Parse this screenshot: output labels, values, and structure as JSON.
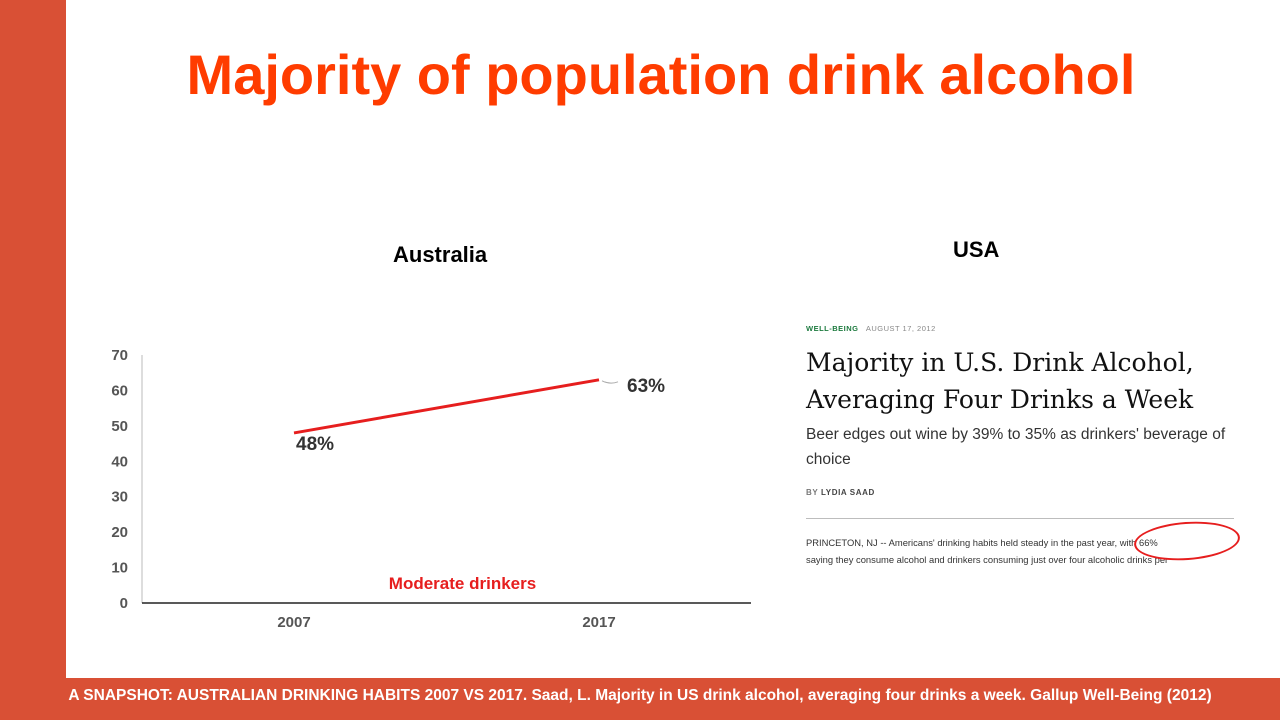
{
  "slide": {
    "title": "Majority of population drink alcohol",
    "footer": "A SNAPSHOT: AUSTRALIAN DRINKING HABITS 2007 VS 2017. Saad, L. Majority in US drink alcohol, averaging four drinks a week. Gallup Well-Being (2012)",
    "accent_color": "#d95035",
    "title_color": "#ff3c00"
  },
  "australia": {
    "label": "Australia"
  },
  "usa": {
    "label": "USA",
    "article": {
      "category": "WELL-BEING",
      "date": "AUGUST 17, 2012",
      "headline_line1": "Majority in U.S. Drink Alcohol,",
      "headline_line2": "Averaging Four Drinks a Week",
      "subhead": "Beer edges out wine by 39% to 35% as drinkers' beverage of choice",
      "byline_prefix": "BY",
      "byline_name": "LYDIA SAAD",
      "body_line1": "PRINCETON, NJ -- Americans' drinking habits held steady in the past year, with 66%",
      "body_line2": "saying they consume alcohol and drinkers consuming just over four alcoholic drinks per"
    }
  },
  "chart_data": {
    "type": "line",
    "x": [
      "2007",
      "2017"
    ],
    "series": [
      {
        "name": "Moderate drinkers",
        "values": [
          48,
          63
        ],
        "labels": [
          "48%",
          "63%"
        ],
        "color": "#e61e1e"
      }
    ],
    "yticks": [
      "0",
      "10",
      "20",
      "30",
      "40",
      "50",
      "60",
      "70"
    ],
    "ylim": [
      0,
      70
    ],
    "grid": false
  }
}
